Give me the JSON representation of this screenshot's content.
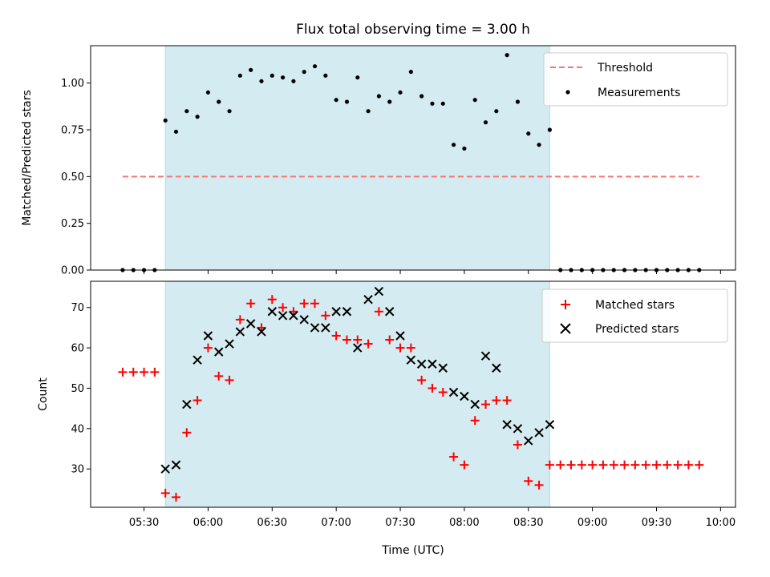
{
  "figure": {
    "title": "Flux total observing time = 3.00 h",
    "xlabel": "Time (UTC)"
  },
  "chart_data": [
    {
      "type": "scatter",
      "ylabel": "Matched/Predicted stars",
      "ylim": [
        0,
        1.2
      ],
      "yticks": [
        "0.00",
        "0.25",
        "0.50",
        "0.75",
        "1.00"
      ],
      "ytick_values": [
        0,
        0.25,
        0.5,
        0.75,
        1.0
      ],
      "xlim": [
        "05:05",
        "10:07"
      ],
      "shaded_span": [
        "05:40",
        "08:40"
      ],
      "shade_color": "#d4ebf1",
      "threshold": {
        "name": "Threshold",
        "value": 0.5,
        "x_range": [
          "05:20",
          "09:50"
        ],
        "color": "#f47676"
      },
      "legend": [
        "Threshold",
        "Measurements"
      ],
      "legend_position": "upper right",
      "series": [
        {
          "name": "Measurements",
          "color": "#000000",
          "points": [
            [
              "05:20",
              0
            ],
            [
              "05:25",
              0
            ],
            [
              "05:30",
              0
            ],
            [
              "05:35",
              0
            ],
            [
              "05:40",
              0.8
            ],
            [
              "05:45",
              0.74
            ],
            [
              "05:50",
              0.85
            ],
            [
              "05:55",
              0.82
            ],
            [
              "06:00",
              0.95
            ],
            [
              "06:05",
              0.9
            ],
            [
              "06:10",
              0.85
            ],
            [
              "06:15",
              1.04
            ],
            [
              "06:20",
              1.07
            ],
            [
              "06:25",
              1.01
            ],
            [
              "06:30",
              1.04
            ],
            [
              "06:35",
              1.03
            ],
            [
              "06:40",
              1.01
            ],
            [
              "06:45",
              1.06
            ],
            [
              "06:50",
              1.09
            ],
            [
              "06:55",
              1.04
            ],
            [
              "07:00",
              0.91
            ],
            [
              "07:05",
              0.9
            ],
            [
              "07:10",
              1.03
            ],
            [
              "07:15",
              0.85
            ],
            [
              "07:20",
              0.93
            ],
            [
              "07:25",
              0.9
            ],
            [
              "07:30",
              0.95
            ],
            [
              "07:35",
              1.06
            ],
            [
              "07:40",
              0.93
            ],
            [
              "07:45",
              0.89
            ],
            [
              "07:50",
              0.89
            ],
            [
              "07:55",
              0.67
            ],
            [
              "08:00",
              0.65
            ],
            [
              "08:05",
              0.91
            ],
            [
              "08:10",
              0.79
            ],
            [
              "08:15",
              0.85
            ],
            [
              "08:20",
              1.15
            ],
            [
              "08:25",
              0.9
            ],
            [
              "08:30",
              0.73
            ],
            [
              "08:35",
              0.67
            ],
            [
              "08:40",
              0.75
            ],
            [
              "08:45",
              0
            ],
            [
              "08:50",
              0
            ],
            [
              "08:55",
              0
            ],
            [
              "09:00",
              0
            ],
            [
              "09:05",
              0
            ],
            [
              "09:10",
              0
            ],
            [
              "09:15",
              0
            ],
            [
              "09:20",
              0
            ],
            [
              "09:25",
              0
            ],
            [
              "09:30",
              0
            ],
            [
              "09:35",
              0
            ],
            [
              "09:40",
              0
            ],
            [
              "09:45",
              0
            ],
            [
              "09:50",
              0
            ]
          ]
        }
      ]
    },
    {
      "type": "scatter",
      "ylabel": "Count",
      "ylim": [
        20.5,
        76.5
      ],
      "yticks": [
        "30",
        "40",
        "50",
        "60",
        "70"
      ],
      "ytick_values": [
        30,
        40,
        50,
        60,
        70
      ],
      "xlim": [
        "05:05",
        "10:07"
      ],
      "xticks": [
        "05:30",
        "06:00",
        "06:30",
        "07:00",
        "07:30",
        "08:00",
        "08:30",
        "09:00",
        "09:30",
        "10:00"
      ],
      "shaded_span": [
        "05:40",
        "08:40"
      ],
      "shade_color": "#d4ebf1",
      "legend": [
        "Matched stars",
        "Predicted stars"
      ],
      "legend_position": "upper right",
      "series": [
        {
          "name": "Matched stars",
          "marker": "plus",
          "color": "#ff0000",
          "points": [
            [
              "05:20",
              54
            ],
            [
              "05:25",
              54
            ],
            [
              "05:30",
              54
            ],
            [
              "05:35",
              54
            ],
            [
              "05:40",
              24
            ],
            [
              "05:45",
              23
            ],
            [
              "05:50",
              39
            ],
            [
              "05:55",
              47
            ],
            [
              "06:00",
              60
            ],
            [
              "06:05",
              53
            ],
            [
              "06:10",
              52
            ],
            [
              "06:15",
              67
            ],
            [
              "06:20",
              71
            ],
            [
              "06:25",
              65
            ],
            [
              "06:30",
              72
            ],
            [
              "06:35",
              70
            ],
            [
              "06:40",
              69
            ],
            [
              "06:45",
              71
            ],
            [
              "06:50",
              71
            ],
            [
              "06:55",
              68
            ],
            [
              "07:00",
              63
            ],
            [
              "07:05",
              62
            ],
            [
              "07:10",
              62
            ],
            [
              "07:15",
              61
            ],
            [
              "07:20",
              69
            ],
            [
              "07:25",
              62
            ],
            [
              "07:30",
              60
            ],
            [
              "07:35",
              60
            ],
            [
              "07:40",
              52
            ],
            [
              "07:45",
              50
            ],
            [
              "07:50",
              49
            ],
            [
              "07:55",
              33
            ],
            [
              "08:00",
              31
            ],
            [
              "08:05",
              42
            ],
            [
              "08:10",
              46
            ],
            [
              "08:15",
              47
            ],
            [
              "08:20",
              47
            ],
            [
              "08:25",
              36
            ],
            [
              "08:30",
              27
            ],
            [
              "08:35",
              26
            ],
            [
              "08:40",
              31
            ],
            [
              "08:45",
              31
            ],
            [
              "08:50",
              31
            ],
            [
              "08:55",
              31
            ],
            [
              "09:00",
              31
            ],
            [
              "09:05",
              31
            ],
            [
              "09:10",
              31
            ],
            [
              "09:15",
              31
            ],
            [
              "09:20",
              31
            ],
            [
              "09:25",
              31
            ],
            [
              "09:30",
              31
            ],
            [
              "09:35",
              31
            ],
            [
              "09:40",
              31
            ],
            [
              "09:45",
              31
            ],
            [
              "09:50",
              31
            ]
          ]
        },
        {
          "name": "Predicted stars",
          "marker": "x",
          "color": "#000000",
          "points": [
            [
              "05:40",
              30
            ],
            [
              "05:45",
              31
            ],
            [
              "05:50",
              46
            ],
            [
              "05:55",
              57
            ],
            [
              "06:00",
              63
            ],
            [
              "06:05",
              59
            ],
            [
              "06:10",
              61
            ],
            [
              "06:15",
              64
            ],
            [
              "06:20",
              66
            ],
            [
              "06:25",
              64
            ],
            [
              "06:30",
              69
            ],
            [
              "06:35",
              68
            ],
            [
              "06:40",
              68
            ],
            [
              "06:45",
              67
            ],
            [
              "06:50",
              65
            ],
            [
              "06:55",
              65
            ],
            [
              "07:00",
              69
            ],
            [
              "07:05",
              69
            ],
            [
              "07:10",
              60
            ],
            [
              "07:15",
              72
            ],
            [
              "07:20",
              74
            ],
            [
              "07:25",
              69
            ],
            [
              "07:30",
              63
            ],
            [
              "07:35",
              57
            ],
            [
              "07:40",
              56
            ],
            [
              "07:45",
              56
            ],
            [
              "07:50",
              55
            ],
            [
              "07:55",
              49
            ],
            [
              "08:00",
              48
            ],
            [
              "08:05",
              46
            ],
            [
              "08:10",
              58
            ],
            [
              "08:15",
              55
            ],
            [
              "08:20",
              41
            ],
            [
              "08:25",
              40
            ],
            [
              "08:30",
              37
            ],
            [
              "08:35",
              39
            ],
            [
              "08:40",
              41
            ]
          ]
        }
      ]
    }
  ]
}
